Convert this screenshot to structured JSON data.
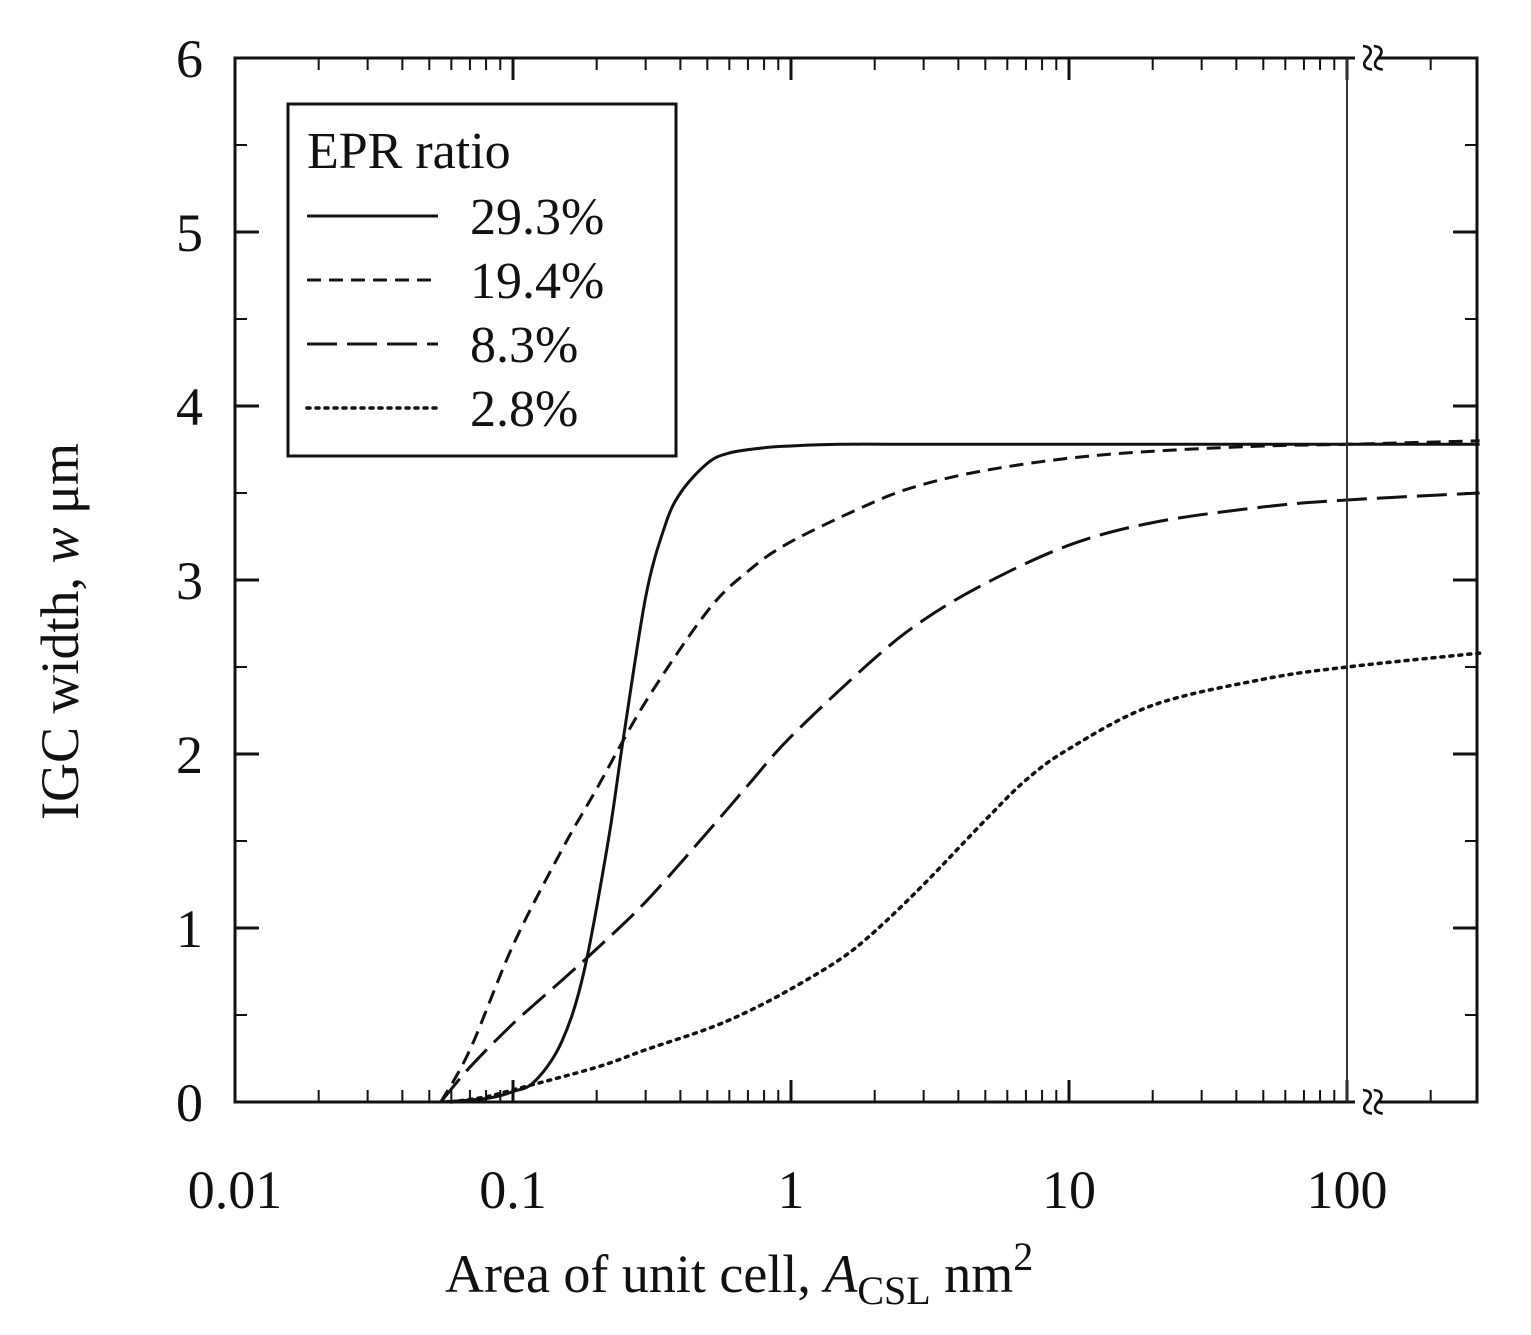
{
  "chart_data": {
    "type": "line",
    "xscale": "log",
    "xlim": [
      0.01,
      300
    ],
    "ylim": [
      0,
      6
    ],
    "xticks": [
      "0.01",
      "0.1",
      "1",
      "10",
      "100"
    ],
    "xtick_values": [
      0.01,
      0.1,
      1,
      10,
      100
    ],
    "yticks": [
      "0",
      "1",
      "2",
      "3",
      "4",
      "5",
      "6"
    ],
    "ytick_values": [
      0,
      1,
      2,
      3,
      4,
      5,
      6
    ],
    "xlabel_main": "Area of unit cell, ",
    "xlabel_symbol": "A",
    "xlabel_sub": "CSL",
    "xlabel_unit": " nm",
    "xlabel_sup": "2",
    "ylabel_main": "IGC width, ",
    "ylabel_symbol": "w",
    "ylabel_unit": " μm",
    "axis_break_x": 100,
    "axis_break_marker": "≈",
    "legend_title": "EPR ratio",
    "legend_position": "top-left",
    "series": [
      {
        "name": "29.3%",
        "style": "solid",
        "x": [
          0.055,
          0.08,
          0.1,
          0.12,
          0.15,
          0.18,
          0.22,
          0.25,
          0.3,
          0.35,
          0.4,
          0.5,
          0.6,
          0.8,
          1,
          1.5,
          3,
          10,
          100,
          300
        ],
        "y": [
          0,
          0.02,
          0.06,
          0.12,
          0.35,
          0.75,
          1.5,
          2.1,
          2.9,
          3.3,
          3.5,
          3.67,
          3.73,
          3.76,
          3.77,
          3.78,
          3.78,
          3.78,
          3.78,
          3.78
        ]
      },
      {
        "name": "19.4%",
        "style": "short-dash",
        "x": [
          0.055,
          0.07,
          0.1,
          0.15,
          0.2,
          0.3,
          0.5,
          0.7,
          1,
          2,
          3,
          5,
          10,
          20,
          50,
          100,
          300
        ],
        "y": [
          0,
          0.3,
          0.9,
          1.45,
          1.8,
          2.3,
          2.82,
          3.05,
          3.22,
          3.45,
          3.55,
          3.63,
          3.7,
          3.74,
          3.77,
          3.78,
          3.8
        ]
      },
      {
        "name": "8.3%",
        "style": "long-dash",
        "x": [
          0.055,
          0.07,
          0.1,
          0.15,
          0.2,
          0.3,
          0.5,
          0.7,
          1,
          2,
          3,
          5,
          10,
          20,
          50,
          100,
          300
        ],
        "y": [
          0,
          0.2,
          0.45,
          0.7,
          0.88,
          1.15,
          1.55,
          1.82,
          2.1,
          2.55,
          2.77,
          2.98,
          3.2,
          3.33,
          3.42,
          3.46,
          3.5
        ]
      },
      {
        "name": "2.8%",
        "style": "dotted",
        "x": [
          0.06,
          0.08,
          0.1,
          0.2,
          0.3,
          0.5,
          0.7,
          1,
          1.5,
          2,
          3,
          5,
          7,
          10,
          20,
          50,
          100,
          300
        ],
        "y": [
          0,
          0.03,
          0.07,
          0.2,
          0.3,
          0.42,
          0.52,
          0.65,
          0.82,
          0.98,
          1.25,
          1.62,
          1.85,
          2.03,
          2.28,
          2.43,
          2.5,
          2.58
        ]
      }
    ]
  }
}
